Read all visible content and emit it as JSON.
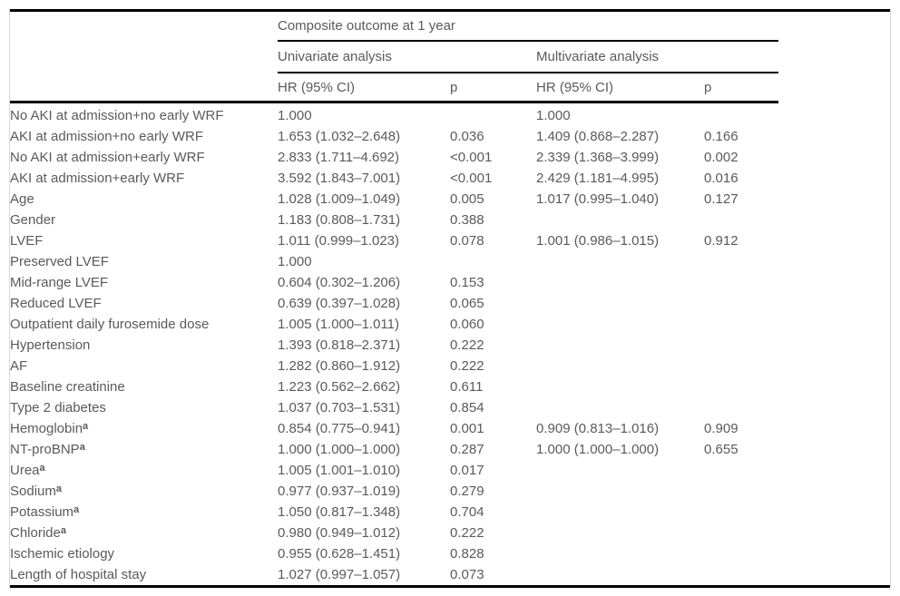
{
  "table": {
    "spanner": "Composite outcome at 1 year",
    "group_univariate": "Univariate analysis",
    "group_multivariate": "Multivariate analysis",
    "col_hr_uni": "HR (95% CI)",
    "col_p_uni": "p",
    "col_hr_multi": "HR (95% CI)",
    "col_p_multi": "p",
    "footnote_marker": "a",
    "rows": [
      {
        "label": "No AKI at admission+no early WRF",
        "sup": "",
        "uni_hr": "1.000",
        "uni_p": "",
        "multi_hr": "1.000",
        "multi_p": ""
      },
      {
        "label": "AKI at admission+no early WRF",
        "sup": "",
        "uni_hr": "1.653 (1.032–2.648)",
        "uni_p": "0.036",
        "multi_hr": "1.409 (0.868–2.287)",
        "multi_p": "0.166"
      },
      {
        "label": "No AKI at admission+early WRF",
        "sup": "",
        "uni_hr": "2.833 (1.711–4.692)",
        "uni_p": "<0.001",
        "multi_hr": "2.339 (1.368–3.999)",
        "multi_p": "0.002"
      },
      {
        "label": "AKI at admission+early WRF",
        "sup": "",
        "uni_hr": "3.592 (1.843–7.001)",
        "uni_p": "<0.001",
        "multi_hr": "2.429 (1.181–4.995)",
        "multi_p": "0.016"
      },
      {
        "label": "Age",
        "sup": "",
        "uni_hr": "1.028 (1.009–1.049)",
        "uni_p": "0.005",
        "multi_hr": "1.017 (0.995–1.040)",
        "multi_p": "0.127"
      },
      {
        "label": "Gender",
        "sup": "",
        "uni_hr": "1.183 (0.808–1.731)",
        "uni_p": "0.388",
        "multi_hr": "",
        "multi_p": ""
      },
      {
        "label": "LVEF",
        "sup": "",
        "uni_hr": "1.011 (0.999–1.023)",
        "uni_p": "0.078",
        "multi_hr": "1.001 (0.986–1.015)",
        "multi_p": "0.912"
      },
      {
        "label": "Preserved LVEF",
        "sup": "",
        "uni_hr": "1.000",
        "uni_p": "",
        "multi_hr": "",
        "multi_p": ""
      },
      {
        "label": "Mid-range LVEF",
        "sup": "",
        "uni_hr": "0.604 (0.302–1.206)",
        "uni_p": "0.153",
        "multi_hr": "",
        "multi_p": ""
      },
      {
        "label": "Reduced LVEF",
        "sup": "",
        "uni_hr": "0.639 (0.397–1.028)",
        "uni_p": "0.065",
        "multi_hr": "",
        "multi_p": ""
      },
      {
        "label": "Outpatient daily furosemide dose",
        "sup": "",
        "uni_hr": "1.005 (1.000–1.011)",
        "uni_p": "0.060",
        "multi_hr": "",
        "multi_p": ""
      },
      {
        "label": "Hypertension",
        "sup": "",
        "uni_hr": "1.393 (0.818–2.371)",
        "uni_p": "0.222",
        "multi_hr": "",
        "multi_p": ""
      },
      {
        "label": "AF",
        "sup": "",
        "uni_hr": "1.282 (0.860–1.912)",
        "uni_p": "0.222",
        "multi_hr": "",
        "multi_p": ""
      },
      {
        "label": "Baseline creatinine",
        "sup": "",
        "uni_hr": "1.223 (0.562–2.662)",
        "uni_p": "0.611",
        "multi_hr": "",
        "multi_p": ""
      },
      {
        "label": "Type 2 diabetes",
        "sup": "",
        "uni_hr": "1.037 (0.703–1.531)",
        "uni_p": "0.854",
        "multi_hr": "",
        "multi_p": ""
      },
      {
        "label": "Hemoglobin",
        "sup": "a",
        "uni_hr": "0.854 (0.775–0.941)",
        "uni_p": "0.001",
        "multi_hr": "0.909 (0.813–1.016)",
        "multi_p": "0.909"
      },
      {
        "label": "NT-proBNP",
        "sup": "a",
        "uni_hr": "1.000 (1.000–1.000)",
        "uni_p": "0.287",
        "multi_hr": "1.000 (1.000–1.000)",
        "multi_p": "0.655"
      },
      {
        "label": "Urea",
        "sup": "a",
        "uni_hr": "1.005 (1.001–1.010)",
        "uni_p": "0.017",
        "multi_hr": "",
        "multi_p": ""
      },
      {
        "label": "Sodium",
        "sup": "a",
        "uni_hr": "0.977 (0.937–1.019)",
        "uni_p": "0.279",
        "multi_hr": "",
        "multi_p": ""
      },
      {
        "label": "Potassium",
        "sup": "a",
        "uni_hr": "1.050 (0.817–1.348)",
        "uni_p": "0.704",
        "multi_hr": "",
        "multi_p": ""
      },
      {
        "label": "Chloride",
        "sup": "a",
        "uni_hr": "0.980 (0.949–1.012)",
        "uni_p": "0.222",
        "multi_hr": "",
        "multi_p": ""
      },
      {
        "label": "Ischemic etiology",
        "sup": "",
        "uni_hr": "0.955 (0.628–1.451)",
        "uni_p": "0.828",
        "multi_hr": "",
        "multi_p": ""
      },
      {
        "label": "Length of hospital stay",
        "sup": "",
        "uni_hr": "1.027 (0.997–1.057)",
        "uni_p": "0.073",
        "multi_hr": "",
        "multi_p": ""
      }
    ]
  },
  "colors": {
    "text": "#5a5a5a",
    "rule": "#000000",
    "frame": "#d9d9d9",
    "background": "#ffffff"
  }
}
